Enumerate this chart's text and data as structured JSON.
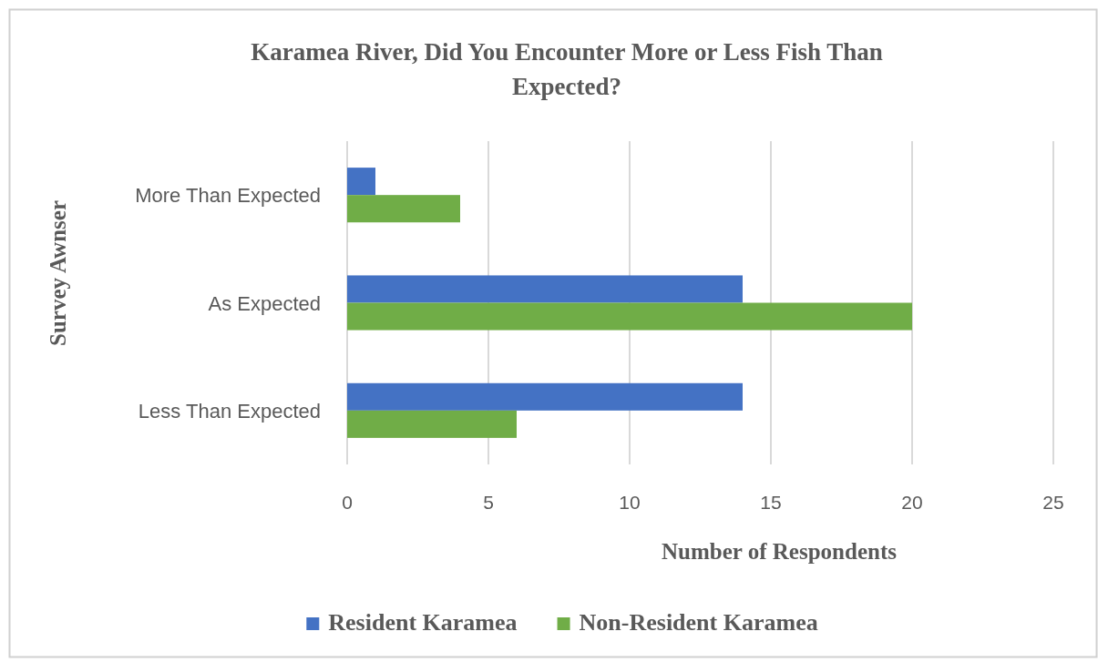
{
  "chart_data": {
    "type": "bar",
    "orientation": "horizontal",
    "title": "Karamea River, Did You Encounter More or Less Fish Than Expected?",
    "xlabel": "Number of Respondents",
    "ylabel": "Survey Awnser",
    "categories": [
      "More Than Expected",
      "As Expected",
      "Less Than Expected"
    ],
    "series": [
      {
        "name": "Resident Karamea",
        "color": "#4472c4",
        "values": [
          1,
          14,
          14
        ]
      },
      {
        "name": "Non-Resident Karamea",
        "color": "#70ad47",
        "values": [
          4,
          20,
          6
        ]
      }
    ],
    "xlim": [
      0,
      25
    ],
    "xticks": [
      0,
      5,
      10,
      15,
      20,
      25
    ],
    "grid": "x",
    "legend": "bottom"
  }
}
